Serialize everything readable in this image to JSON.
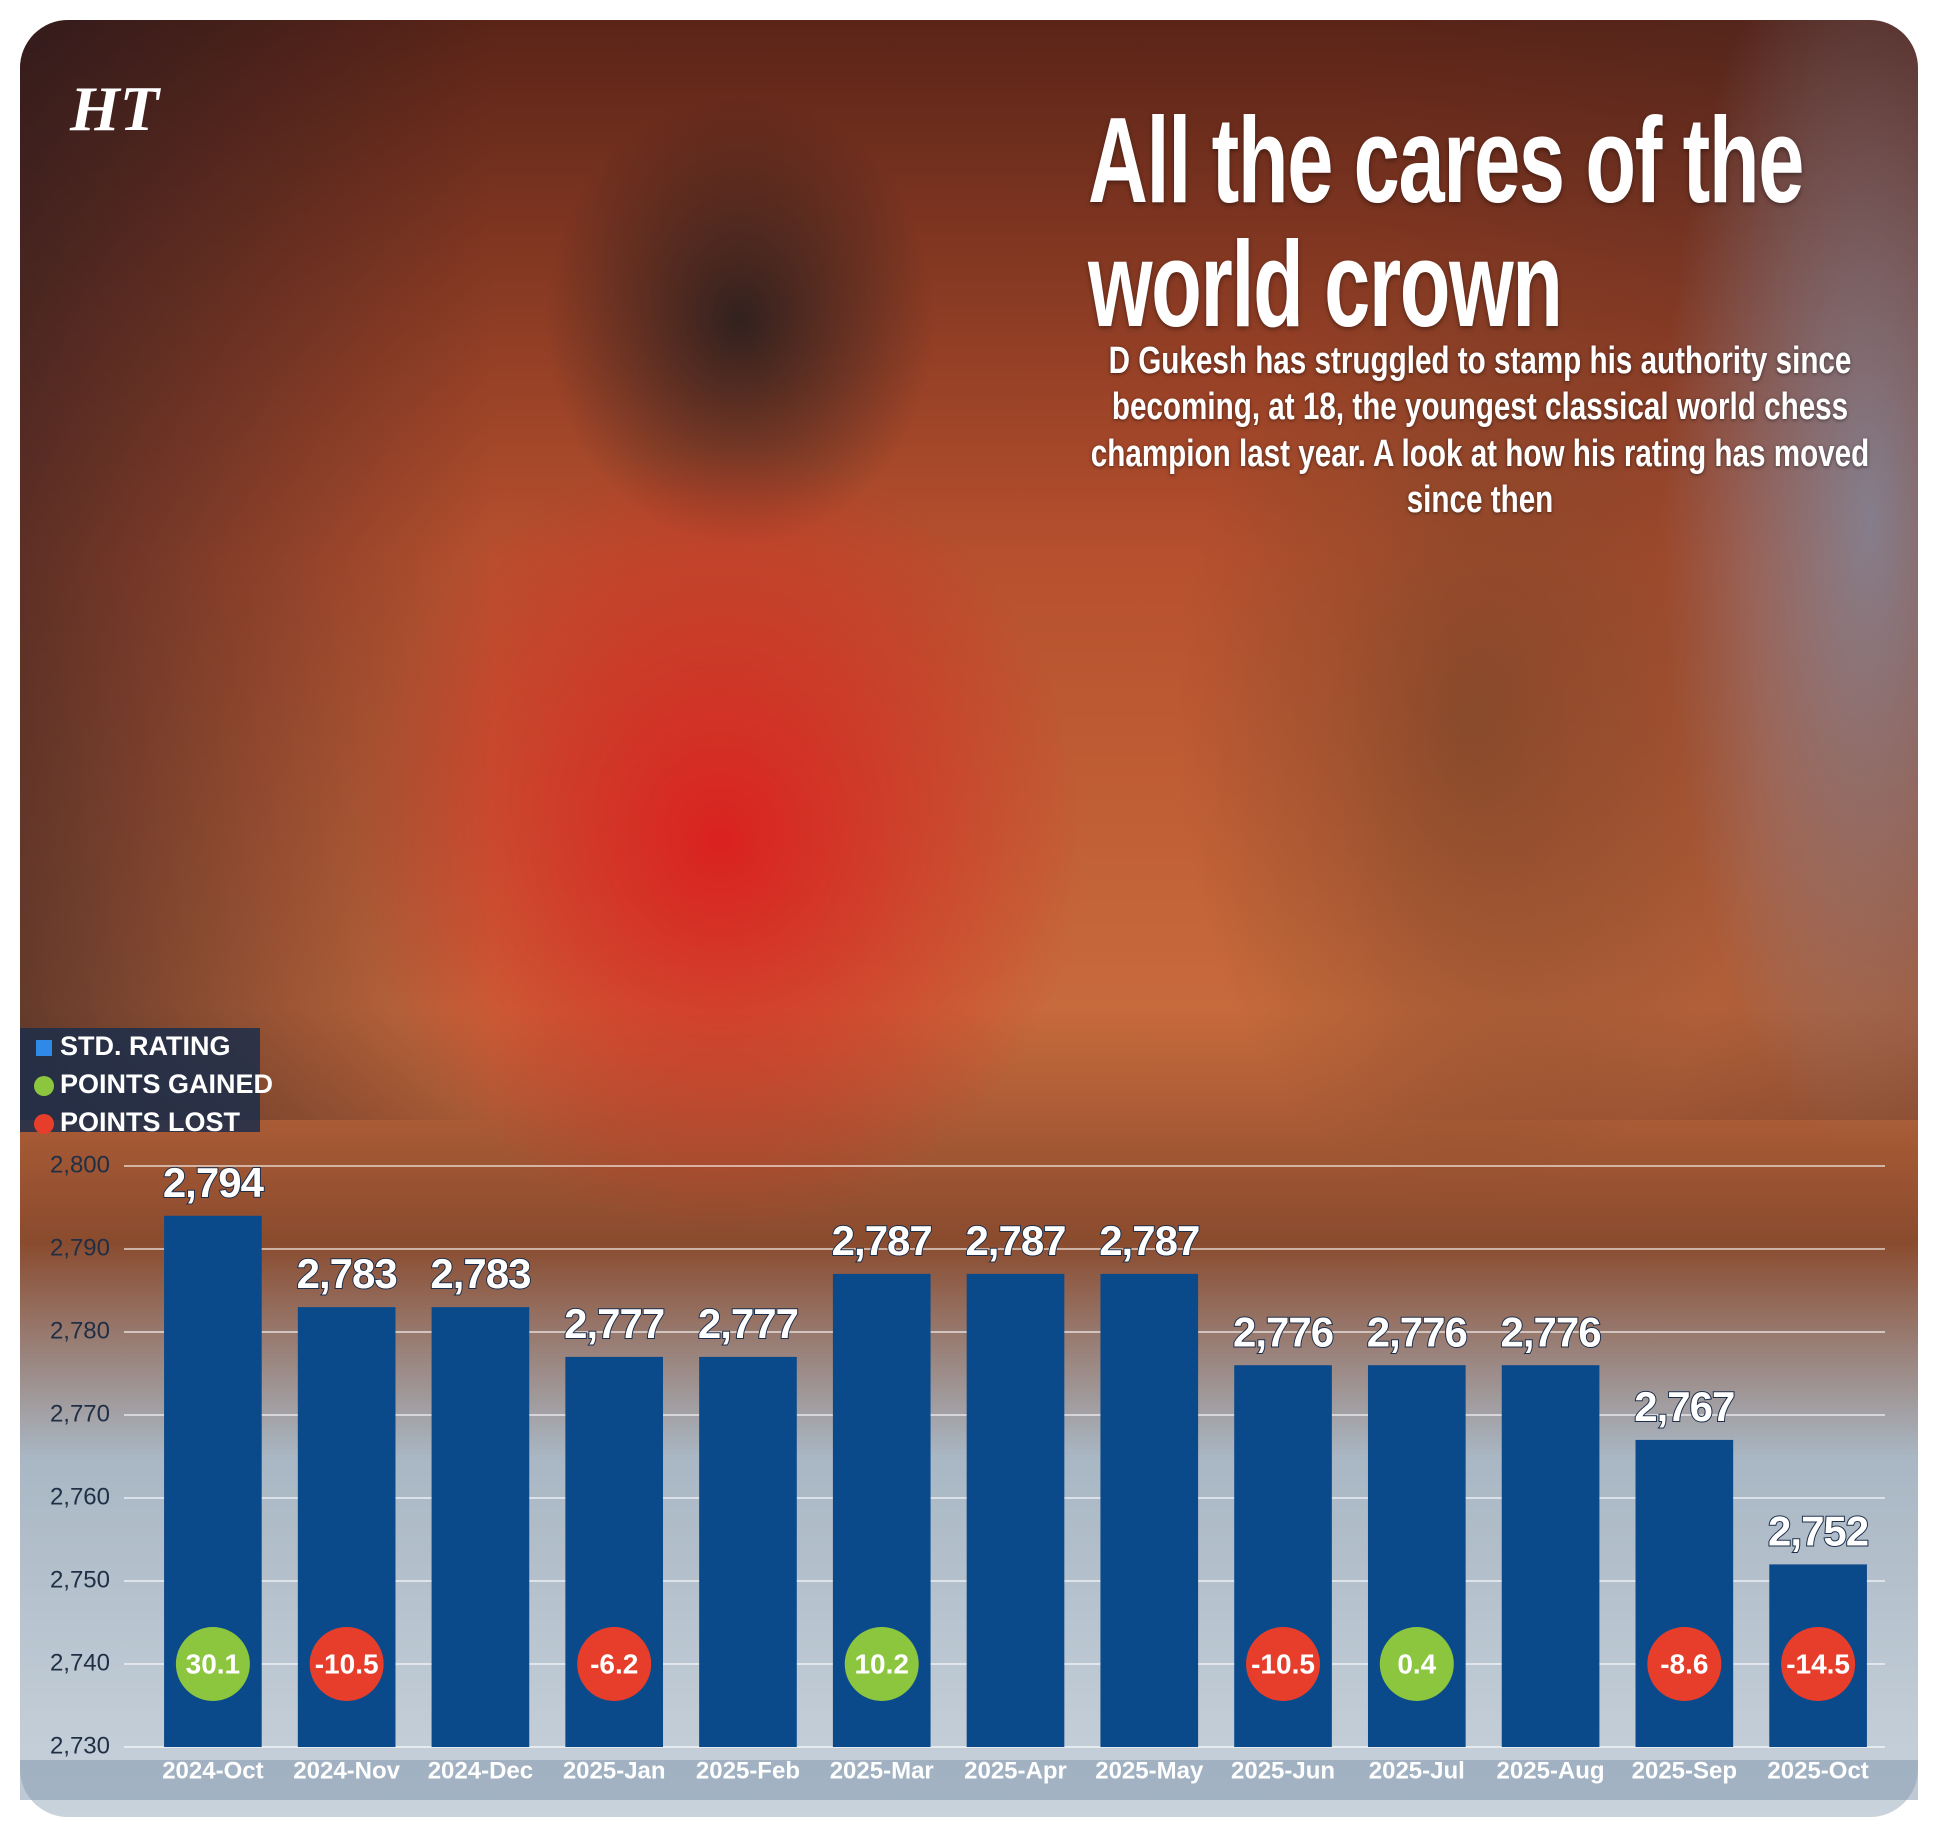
{
  "logo": "HT",
  "chart_data": {
    "type": "bar",
    "title": "All the cares of the world crown",
    "subtitle": "D Gukesh has struggled to stamp his authority since becoming, at 18, the youngest classical world chess champion last year. A look at how his rating has moved since then",
    "categories": [
      "2024-Oct",
      "2024-Nov",
      "2024-Dec",
      "2025-Jan",
      "2025-Feb",
      "2025-Mar",
      "2025-Apr",
      "2025-May",
      "2025-Jun",
      "2025-Jul",
      "2025-Aug",
      "2025-Sep",
      "2025-Oct"
    ],
    "series": [
      {
        "name": "STD. RATING",
        "color": "#0b4a8a",
        "values": [
          2794,
          2783,
          2783,
          2777,
          2777,
          2787,
          2787,
          2787,
          2776,
          2776,
          2776,
          2767,
          2752
        ],
        "value_labels": [
          "2,794",
          "2,783",
          "2,783",
          "2,777",
          "2,777",
          "2,787",
          "2,787",
          "2,787",
          "2,776",
          "2,776",
          "2,776",
          "2,767",
          "2,752"
        ]
      },
      {
        "name": "POINTS GAINED",
        "color": "#8cc63f",
        "values": [
          30.1,
          null,
          null,
          null,
          null,
          10.2,
          null,
          null,
          null,
          0.4,
          null,
          null,
          null
        ]
      },
      {
        "name": "POINTS LOST",
        "color": "#e63e2b",
        "values": [
          null,
          -10.5,
          null,
          -6.2,
          null,
          null,
          null,
          null,
          -10.5,
          null,
          null,
          -8.6,
          -14.5
        ]
      }
    ],
    "ylim": [
      2730,
      2800
    ],
    "yticks": [
      {
        "value": 2730,
        "label": "2,730"
      },
      {
        "value": 2740,
        "label": "2,740"
      },
      {
        "value": 2750,
        "label": "2,750"
      },
      {
        "value": 2760,
        "label": "2,760"
      },
      {
        "value": 2770,
        "label": "2,770"
      },
      {
        "value": 2780,
        "label": "2,780"
      },
      {
        "value": 2790,
        "label": "2,790"
      },
      {
        "value": 2800,
        "label": "2,800"
      }
    ],
    "grid": true
  }
}
